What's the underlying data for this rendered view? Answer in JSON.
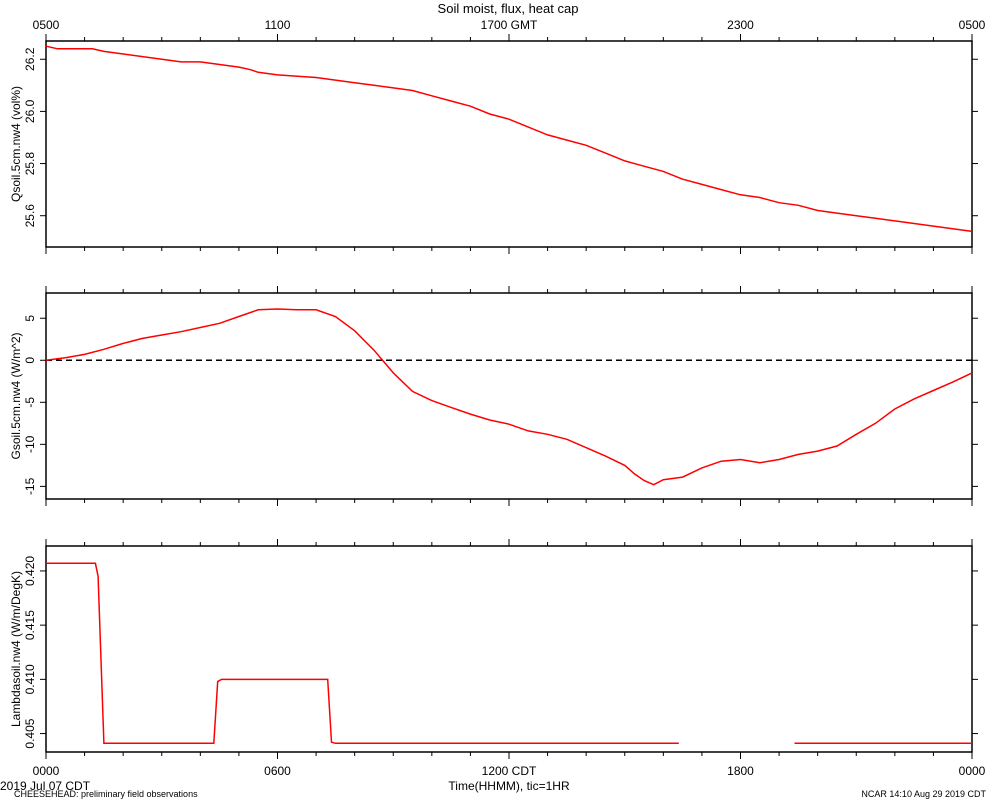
{
  "title": "Soil moist, flux, heat cap",
  "footer_left": "CHEESEHEAD: preliminary field observations",
  "footer_right": "NCAR 14:10 Aug 29 2019 CDT",
  "date_label": "2019 Jul 07 CDT",
  "colors": {
    "series": "#ff0000",
    "axes": "#000000",
    "zero_line": "#000000"
  },
  "chart_data": {
    "type": "line",
    "x_unit": "hours since 0000 CDT 2019 Jul 07",
    "top_axis": {
      "ticks": [
        0,
        6,
        12,
        18,
        24
      ],
      "labels": [
        "0500",
        "1100",
        "1700 GMT",
        "2300",
        "0500"
      ]
    },
    "bottom_axis": {
      "ticks": [
        0,
        6,
        12,
        18,
        24
      ],
      "labels": [
        "0000",
        "0600",
        "1200 CDT",
        "1800",
        "0000"
      ],
      "xlabel": "Time(HHMM), tic=1HR",
      "xlim": [
        0,
        24
      ]
    },
    "panels": [
      {
        "ylabel": "Qsoil.5cm.nw4 (vol%)",
        "ylim": [
          25.48,
          26.27
        ],
        "yticks": [
          25.6,
          25.8,
          26.0,
          26.2
        ],
        "ytick_labels": [
          "25.6",
          "25.8",
          "26.0",
          "26.2"
        ],
        "zero_line": false,
        "series": [
          {
            "x": [
              0,
              0.3,
              1.2,
              1.5,
              2,
              2.5,
              3,
              3.5,
              4,
              4.5,
              5,
              5.3,
              5.5,
              6,
              7,
              7.5,
              8,
              8.5,
              9,
              9.5,
              10,
              10.5,
              11,
              11.5,
              12,
              12.5,
              13,
              13.5,
              14,
              14.5,
              15,
              15.5,
              16,
              16.5,
              17,
              17.5,
              18,
              18.5,
              19,
              19.5,
              20,
              20.5,
              21,
              21.5,
              22,
              22.5,
              23,
              23.5,
              24
            ],
            "y": [
              26.25,
              26.24,
              26.24,
              26.23,
              26.22,
              26.21,
              26.2,
              26.19,
              26.19,
              26.18,
              26.17,
              26.16,
              26.15,
              26.14,
              26.13,
              26.12,
              26.11,
              26.1,
              26.09,
              26.08,
              26.06,
              26.04,
              26.02,
              25.99,
              25.97,
              25.94,
              25.91,
              25.89,
              25.87,
              25.84,
              25.81,
              25.79,
              25.77,
              25.74,
              25.72,
              25.7,
              25.68,
              25.67,
              25.65,
              25.64,
              25.62,
              25.61,
              25.6,
              25.59,
              25.58,
              25.57,
              25.56,
              25.55,
              25.54
            ]
          }
        ]
      },
      {
        "ylabel": "Gsoil.5cm.nw4 (W/m^2)",
        "ylim": [
          -16.5,
          8.0
        ],
        "yticks": [
          -15,
          -10,
          -5,
          0,
          5
        ],
        "ytick_labels": [
          "-15",
          "-10",
          "-5",
          "0",
          "5"
        ],
        "zero_line": true,
        "series": [
          {
            "x": [
              0,
              0.5,
              1,
              1.5,
              2,
              2.5,
              3,
              3.5,
              4,
              4.5,
              5,
              5.5,
              6,
              6.5,
              7,
              7.5,
              8,
              8.5,
              9,
              9.5,
              10,
              10.5,
              11,
              11.5,
              12,
              12.5,
              13,
              13.5,
              14,
              14.5,
              15,
              15.25,
              15.5,
              15.75,
              16,
              16.5,
              17,
              17.5,
              18,
              18.5,
              19,
              19.5,
              20,
              20.5,
              21,
              21.5,
              22,
              22.5,
              23,
              23.5,
              24
            ],
            "y": [
              0.0,
              0.3,
              0.7,
              1.3,
              2.0,
              2.6,
              3.0,
              3.4,
              3.9,
              4.4,
              5.2,
              6.0,
              6.1,
              6.0,
              6.0,
              5.2,
              3.5,
              1.2,
              -1.5,
              -3.7,
              -4.8,
              -5.6,
              -6.4,
              -7.1,
              -7.6,
              -8.4,
              -8.8,
              -9.4,
              -10.4,
              -11.4,
              -12.5,
              -13.5,
              -14.3,
              -14.8,
              -14.2,
              -13.9,
              -12.8,
              -12.0,
              -11.8,
              -12.2,
              -11.8,
              -11.2,
              -10.8,
              -10.2,
              -8.8,
              -7.5,
              -5.8,
              -4.6,
              -3.6,
              -2.6,
              -1.5
            ]
          }
        ]
      },
      {
        "ylabel": "Lambdasoil.nw4 (W/m/DegK)",
        "ylim": [
          0.4033,
          0.4223
        ],
        "yticks": [
          0.405,
          0.41,
          0.415,
          0.42
        ],
        "ytick_labels": [
          "0.405",
          "0.410",
          "0.415",
          "0.420"
        ],
        "zero_line": false,
        "series": [
          {
            "x": [
              0,
              1.28,
              1.35,
              1.5,
              4.35,
              4.45,
              4.55,
              7.3,
              7.4,
              7.5,
              16.4
            ],
            "y": [
              0.4207,
              0.4207,
              0.4195,
              0.4041,
              0.4041,
              0.4098,
              0.41,
              0.41,
              0.4042,
              0.4041,
              0.4041
            ]
          },
          {
            "x": [
              19.4,
              24
            ],
            "y": [
              0.4041,
              0.4041
            ]
          }
        ]
      }
    ]
  }
}
